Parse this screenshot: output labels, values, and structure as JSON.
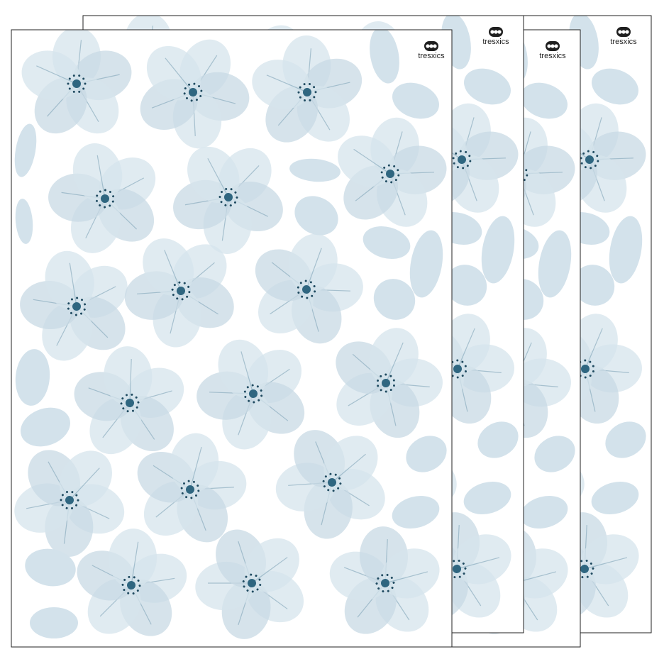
{
  "sheets": [
    {
      "brand": "tresxics"
    },
    {
      "brand": "tresxics"
    },
    {
      "brand": "tresxics"
    },
    {
      "brand": "tresxics"
    }
  ]
}
